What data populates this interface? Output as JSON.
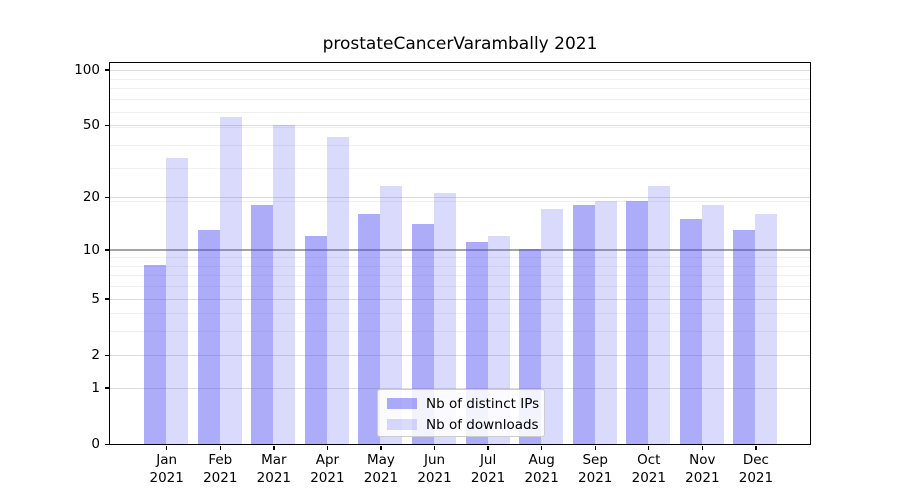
{
  "title": "prostateCancerVarambally 2021",
  "colors": {
    "bar_base": "#4646f0",
    "ips_fill": "rgba(70,70,240,0.45)",
    "downloads_fill": "rgba(70,70,240,0.2)",
    "grid_major": "#dcdcdc",
    "grid_minor": "#f0f0f0",
    "grid_emphasis": "#a5a5a5",
    "spine": "#000000",
    "text": "#000000",
    "background": "#ffffff",
    "legend_border": "#cccccc"
  },
  "chart_data": {
    "type": "bar",
    "title": "prostateCancerVarambally 2021",
    "categories": [
      "Jan",
      "Feb",
      "Mar",
      "Apr",
      "May",
      "Jun",
      "Jul",
      "Aug",
      "Sep",
      "Oct",
      "Nov",
      "Dec"
    ],
    "year_label": "2021",
    "series": [
      {
        "name": "Nb of distinct IPs",
        "color": "rgba(70,70,240,0.45)",
        "values": [
          8,
          13,
          18,
          12,
          16,
          14,
          11,
          10,
          18,
          19,
          15,
          13
        ]
      },
      {
        "name": "Nb of downloads",
        "color": "rgba(70,70,240,0.2)",
        "values": [
          33,
          55,
          50,
          43,
          23,
          21,
          12,
          17,
          19,
          23,
          18,
          16
        ]
      }
    ],
    "yscale": "log10(1+v)",
    "ylim": [
      0,
      109
    ],
    "yticks": [
      0,
      1,
      2,
      5,
      10,
      20,
      50,
      100
    ],
    "minor_yticks": [
      3,
      4,
      6,
      7,
      8,
      9,
      19,
      29,
      39,
      49,
      59,
      69,
      79,
      89
    ],
    "emphasized_gridline": 10,
    "grid": true,
    "legend_position": "lower center",
    "xlabel": "",
    "ylabel": ""
  }
}
